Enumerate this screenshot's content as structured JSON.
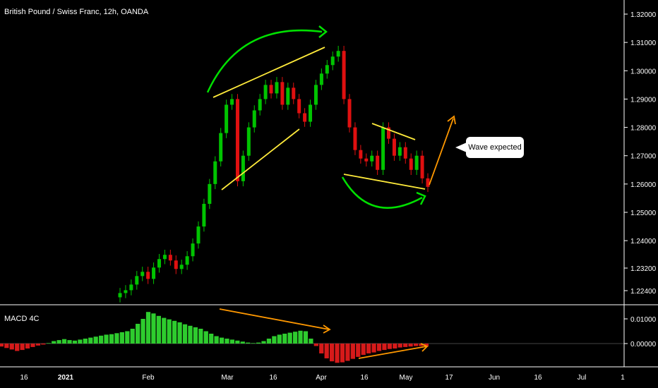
{
  "window": {
    "title": "British Pound / Swiss Franc, 12h, OANDA"
  },
  "macd_panel": {
    "title": "MACD 4C"
  },
  "callout": {
    "text": "Wave expected"
  },
  "colors": {
    "up": "#00c400",
    "down": "#e01010",
    "hist_pos": "#2ecc2e",
    "hist_neg": "#d61a1a",
    "annot_green": "#00e000",
    "annot_yellow": "#ffeb3b",
    "annot_orange": "#ff9800"
  },
  "chart_data": [
    {
      "type": "candlestick",
      "name": "price",
      "price_axis": {
        "ticks": [
          "1.32000",
          "1.31000",
          "1.30000",
          "1.29000",
          "1.28000",
          "1.27000",
          "1.26000",
          "1.25000",
          "1.24000",
          "1.23200",
          "1.22400"
        ],
        "tick_values": [
          1.32,
          1.31,
          1.3,
          1.29,
          1.28,
          1.27,
          1.26,
          1.25,
          1.24,
          1.232,
          1.224
        ]
      },
      "time_axis": {
        "labels": [
          "16",
          "2021",
          "Feb",
          "Mar",
          "16",
          "Apr",
          "16",
          "May",
          "17",
          "Jun",
          "16",
          "Jul",
          "1"
        ]
      },
      "closes": [
        1.2215,
        1.2225,
        1.2245,
        1.2275,
        1.229,
        1.2265,
        1.2305,
        1.2335,
        1.235,
        1.233,
        1.23,
        1.2315,
        1.2345,
        1.239,
        1.245,
        1.253,
        1.26,
        1.268,
        1.278,
        1.288,
        1.29,
        1.261,
        1.27,
        1.28,
        1.286,
        1.29,
        1.295,
        1.292,
        1.296,
        1.288,
        1.294,
        1.29,
        1.285,
        1.282,
        1.288,
        1.295,
        1.299,
        1.302,
        1.305,
        1.307,
        1.29,
        1.28,
        1.272,
        1.269,
        1.268,
        1.27,
        1.265,
        1.28,
        1.276,
        1.27,
        1.273,
        1.269,
        1.265,
        1.27,
        1.262,
        1.259
      ],
      "annotations": [
        "green arc above first wedge",
        "yellow rising wedge (Mar)",
        "yellow descending wedge (Apr-May)",
        "green arc below second wedge",
        "orange arrow up (projection)"
      ]
    },
    {
      "type": "bar",
      "name": "MACD 4C histogram",
      "y_axis": {
        "ticks": [
          "0.01000",
          "0.00000"
        ],
        "tick_values": [
          0.01,
          0.0
        ]
      },
      "values": [
        -0.0012,
        -0.0018,
        -0.0024,
        -0.003,
        -0.0026,
        -0.002,
        -0.0014,
        -0.0008,
        -0.0004,
        0.0002,
        0.001,
        0.0014,
        0.0018,
        0.0014,
        0.0012,
        0.0016,
        0.002,
        0.0024,
        0.0028,
        0.0032,
        0.0036,
        0.0038,
        0.0042,
        0.0046,
        0.005,
        0.006,
        0.008,
        0.01,
        0.0128,
        0.0122,
        0.0112,
        0.0104,
        0.0098,
        0.0092,
        0.0086,
        0.0078,
        0.0072,
        0.0066,
        0.006,
        0.005,
        0.004,
        0.003,
        0.0024,
        0.002,
        0.0016,
        0.0012,
        0.0008,
        0.0004,
        0.0002,
        0.0004,
        0.001,
        0.002,
        0.003,
        0.0036,
        0.004,
        0.0044,
        0.0048,
        0.0052,
        0.005,
        0.002,
        -0.001,
        -0.004,
        -0.006,
        -0.0072,
        -0.0078,
        -0.0076,
        -0.007,
        -0.0062,
        -0.0054,
        -0.0046,
        -0.004,
        -0.0036,
        -0.003,
        -0.0026,
        -0.0022,
        -0.002,
        -0.0016,
        -0.0014,
        -0.0012,
        -0.001,
        -0.001,
        -0.0012
      ],
      "annotations": [
        "orange falling divergence line",
        "orange rising divergence arrow"
      ]
    }
  ]
}
